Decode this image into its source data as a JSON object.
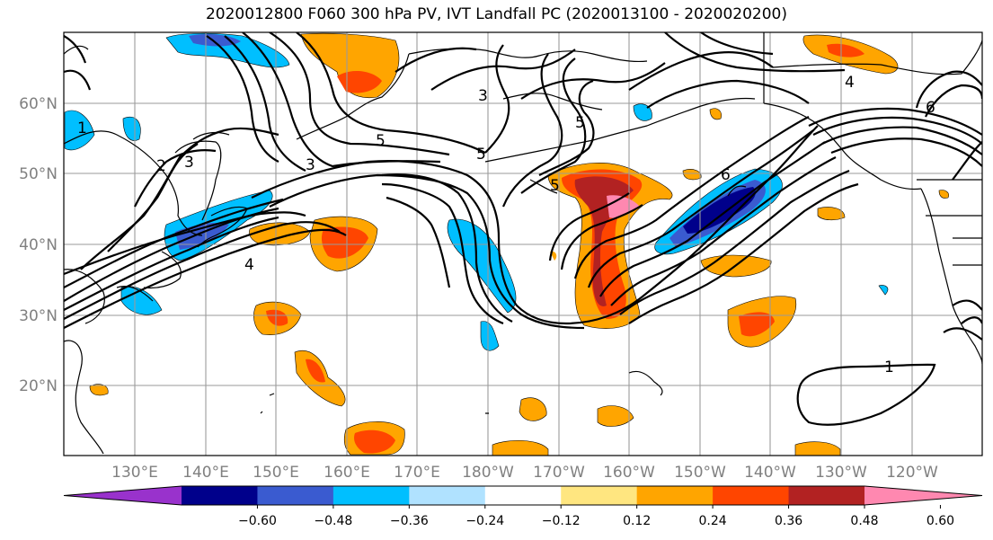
{
  "title": "2020012800 F060 300 hPa PV, IVT Landfall PC (2020013100 - 2020020200)",
  "map": {
    "lon_labels": [
      "130°E",
      "140°E",
      "150°E",
      "160°E",
      "170°E",
      "180°W",
      "170°W",
      "160°W",
      "150°W",
      "140°W",
      "130°W",
      "120°W"
    ],
    "lat_labels": [
      "60°N",
      "50°N",
      "40°N",
      "30°N",
      "20°N"
    ],
    "contour_labels": [
      "1",
      "2",
      "3",
      "3",
      "4",
      "5",
      "5",
      "5",
      "5",
      "6",
      "3",
      "4",
      "6",
      "1"
    ]
  },
  "colorbar": {
    "ticks": [
      "−0.60",
      "−0.48",
      "−0.36",
      "−0.24",
      "−0.12",
      "0.12",
      "0.24",
      "0.36",
      "0.48",
      "0.60"
    ],
    "colors": [
      "#9932cc",
      "#00008b",
      "#3a5bd0",
      "#00bfff",
      "#b0e2ff",
      "#ffffff",
      "#ffe680",
      "#ffa500",
      "#ff4500",
      "#b22222",
      "#ff88b0"
    ]
  }
}
